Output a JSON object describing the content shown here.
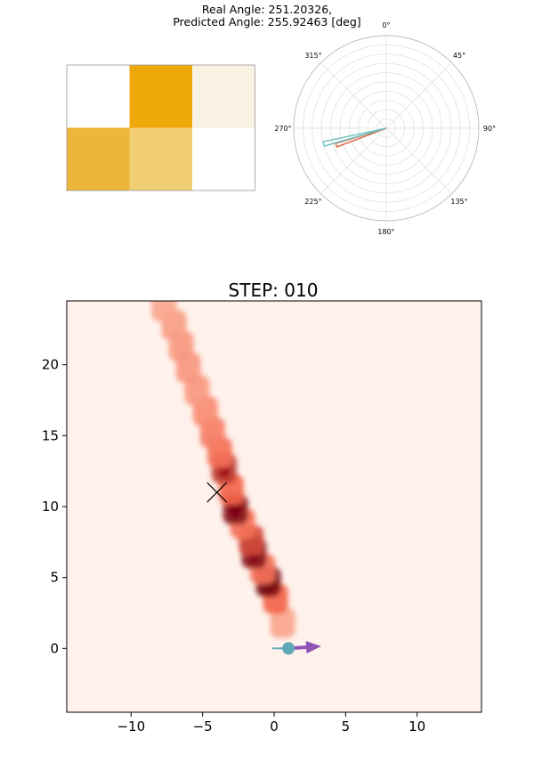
{
  "header": {
    "line1": "Real Angle: 251.20326,",
    "line2": "Predicted Angle: 255.92463 [deg]"
  },
  "colors": {
    "heat_dark": "#eea80a",
    "heat_mid_dark": "#edb53a",
    "heat_mid": "#f2ce73",
    "heat_light": "#f9f1e2",
    "real_angle": "#d9603f",
    "predicted_angle": "#6dbfbf",
    "polar_grid": "#dddddd",
    "plume_low": "#fff2ec",
    "plume_high": "#67000d",
    "agent": "#5fa8b5",
    "heading_arrow": "#8e54b6"
  },
  "chart_data": [
    {
      "type": "heatmap",
      "rows": 2,
      "cols": 3,
      "values": [
        [
          0.0,
          1.0,
          0.1
        ],
        [
          0.8,
          0.55,
          0.0
        ]
      ]
    },
    {
      "type": "polar",
      "theta_direction": "clockwise",
      "theta_zero": "top",
      "angle_ticks": [
        "0°",
        "45°",
        "90°",
        "135°",
        "180°",
        "225°",
        "270°",
        "315°"
      ],
      "series": [
        {
          "angle_deg": 251.20326,
          "wedge_width_deg": 4,
          "radius": 0.9,
          "color": "#d9603f"
        },
        {
          "angle_deg": 255.92463,
          "wedge_width_deg": 4,
          "radius": 1.1,
          "color": "#6dbfbf"
        }
      ]
    },
    {
      "type": "heatmap",
      "title": "STEP: 010",
      "xlim": [
        -14.5,
        14.5
      ],
      "ylim": [
        -4.5,
        24.5
      ],
      "xticks": [
        -10,
        -5,
        0,
        5,
        10
      ],
      "xtick_labels": [
        "−10",
        "−5",
        "0",
        "5",
        "10"
      ],
      "yticks": [
        0,
        5,
        10,
        15,
        20
      ],
      "ytick_labels": [
        "0",
        "5",
        "10",
        "15",
        "20"
      ],
      "plume": [
        {
          "x": 0.6,
          "y": 1.8,
          "intensity": 0.35
        },
        {
          "x": 0.1,
          "y": 3.5,
          "intensity": 0.6
        },
        {
          "x": -0.4,
          "y": 4.7,
          "intensity": 0.95
        },
        {
          "x": -0.8,
          "y": 5.6,
          "intensity": 0.55
        },
        {
          "x": -1.4,
          "y": 6.7,
          "intensity": 0.9
        },
        {
          "x": -1.6,
          "y": 7.6,
          "intensity": 0.7
        },
        {
          "x": -2.2,
          "y": 8.8,
          "intensity": 0.55
        },
        {
          "x": -2.7,
          "y": 9.8,
          "intensity": 0.9
        },
        {
          "x": -3.0,
          "y": 11.2,
          "intensity": 0.6
        },
        {
          "x": -3.5,
          "y": 12.7,
          "intensity": 0.75
        },
        {
          "x": -3.8,
          "y": 13.8,
          "intensity": 0.55
        },
        {
          "x": -4.3,
          "y": 15.2,
          "intensity": 0.5
        },
        {
          "x": -4.8,
          "y": 16.7,
          "intensity": 0.45
        },
        {
          "x": -5.4,
          "y": 18.2,
          "intensity": 0.4
        },
        {
          "x": -6.0,
          "y": 19.8,
          "intensity": 0.4
        },
        {
          "x": -6.5,
          "y": 21.3,
          "intensity": 0.4
        },
        {
          "x": -7.0,
          "y": 22.8,
          "intensity": 0.38
        },
        {
          "x": -7.7,
          "y": 24.1,
          "intensity": 0.35
        }
      ],
      "marker_x": {
        "x": -4.0,
        "y": 11.0
      },
      "agent": {
        "x": 1.0,
        "y": 0.0
      },
      "agent_tail": {
        "x0": 0.0,
        "x1": 1.0,
        "y": 0.0
      },
      "heading": {
        "x0": 1.0,
        "y0": 0.0,
        "x1": 3.3,
        "y1": 0.15
      }
    }
  ]
}
